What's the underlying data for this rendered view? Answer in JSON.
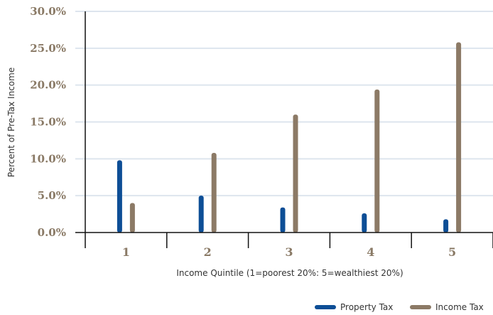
{
  "chart_data": {
    "type": "bar",
    "xlabel": "Income Quintile (1=poorest 20%: 5=wealthiest 20%)",
    "ylabel": "Percent of Pre-Tax Income",
    "ylim": [
      0,
      30
    ],
    "yticks": [
      "0.0%",
      "5.0%",
      "10.0%",
      "15.0%",
      "20.0%",
      "25.0%",
      "30.0%"
    ],
    "categories": [
      "1",
      "2",
      "3",
      "4",
      "5"
    ],
    "grid": true,
    "legend_position": "bottom-right",
    "series": [
      {
        "name": "Property Tax",
        "color": "#0d4e96",
        "values": [
          9.8,
          5.0,
          3.4,
          2.6,
          1.8
        ]
      },
      {
        "name": "Income Tax",
        "color": "#8c7a66",
        "values": [
          4.0,
          10.8,
          16.0,
          19.4,
          25.8
        ]
      }
    ]
  }
}
